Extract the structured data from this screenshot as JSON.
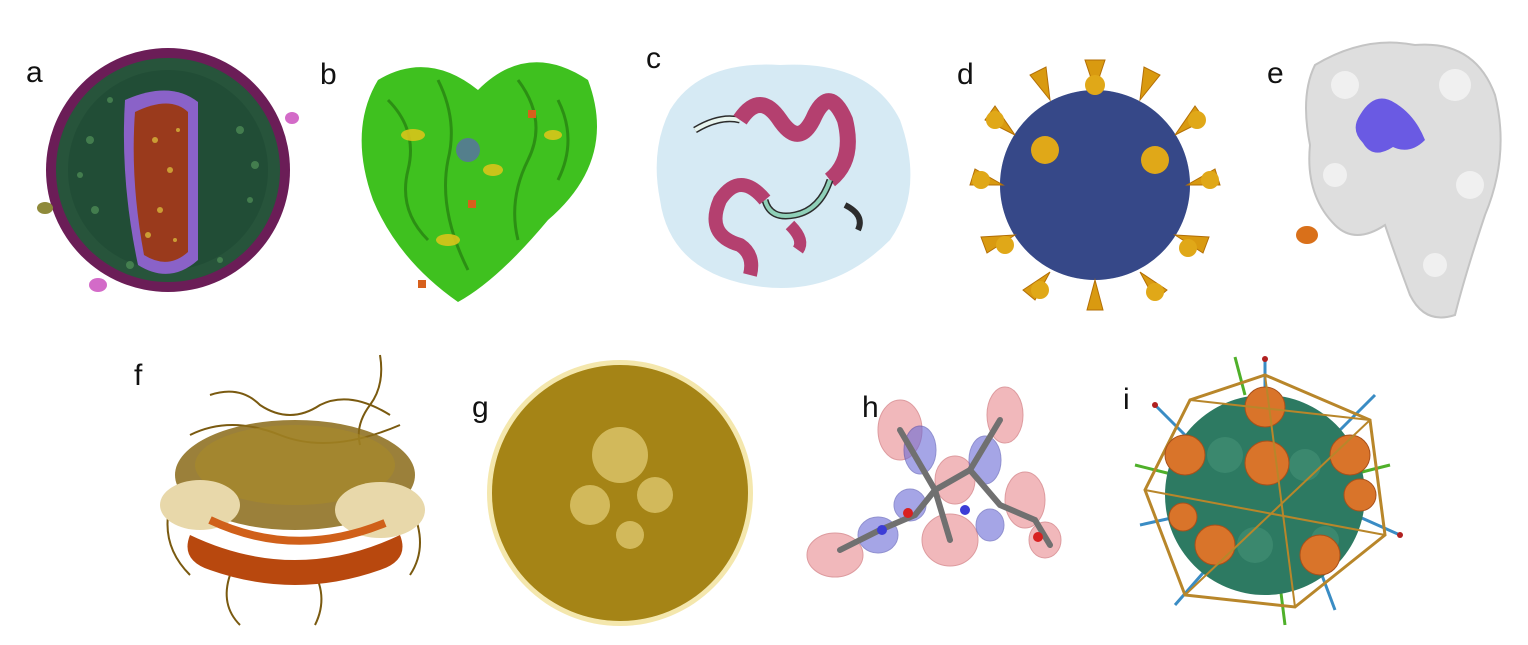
{
  "panels": [
    {
      "id": "a",
      "label": "a",
      "depicts": "virus-cross-section"
    },
    {
      "id": "b",
      "label": "b",
      "depicts": "superposed-protein-ribbons"
    },
    {
      "id": "c",
      "label": "c",
      "depicts": "ribbon-in-transparent-surface"
    },
    {
      "id": "d",
      "label": "d",
      "depicts": "spiked-virion"
    },
    {
      "id": "e",
      "label": "e",
      "depicts": "protein-surface-with-binding-site"
    },
    {
      "id": "f",
      "label": "f",
      "depicts": "nucleosome-with-tails"
    },
    {
      "id": "g",
      "label": "g",
      "depicts": "dense-spherical-assembly"
    },
    {
      "id": "h",
      "label": "h",
      "depicts": "molecule-with-orbitals"
    },
    {
      "id": "i",
      "label": "i",
      "depicts": "capsid-with-cage-and-vectors"
    }
  ],
  "colors": {
    "background": "#ffffff",
    "a_coat": "#27543b",
    "a_rim": "#6b1d57",
    "a_membrane": "#8a62c8",
    "a_core": "#9a3a1c",
    "b_green": "#3fc11f",
    "b_yellow": "#d8c51a",
    "b_orange": "#d7601c",
    "c_ribbon": "#b4406f",
    "c_surface": "#cfe6f2",
    "d_sphere": "#2c4e87",
    "d_spike": "#d99a10",
    "e_surface": "#dedede",
    "e_site": "#6a5ae3",
    "e_spot": "#d9701a",
    "f_dna": "#b8480e",
    "f_tails": "#7a5a10",
    "f_light": "#e8d8aa",
    "g_sphere": "#b89418",
    "g_light": "#f0dd8a",
    "h_red": "#e88a8f",
    "h_blue": "#6a6ad6",
    "h_stick": "#707070",
    "i_green": "#2d7a62",
    "i_orange": "#d9742a",
    "i_cage": "#b8862a",
    "i_blue": "#3a8cc4",
    "i_lime": "#4fb02a"
  }
}
